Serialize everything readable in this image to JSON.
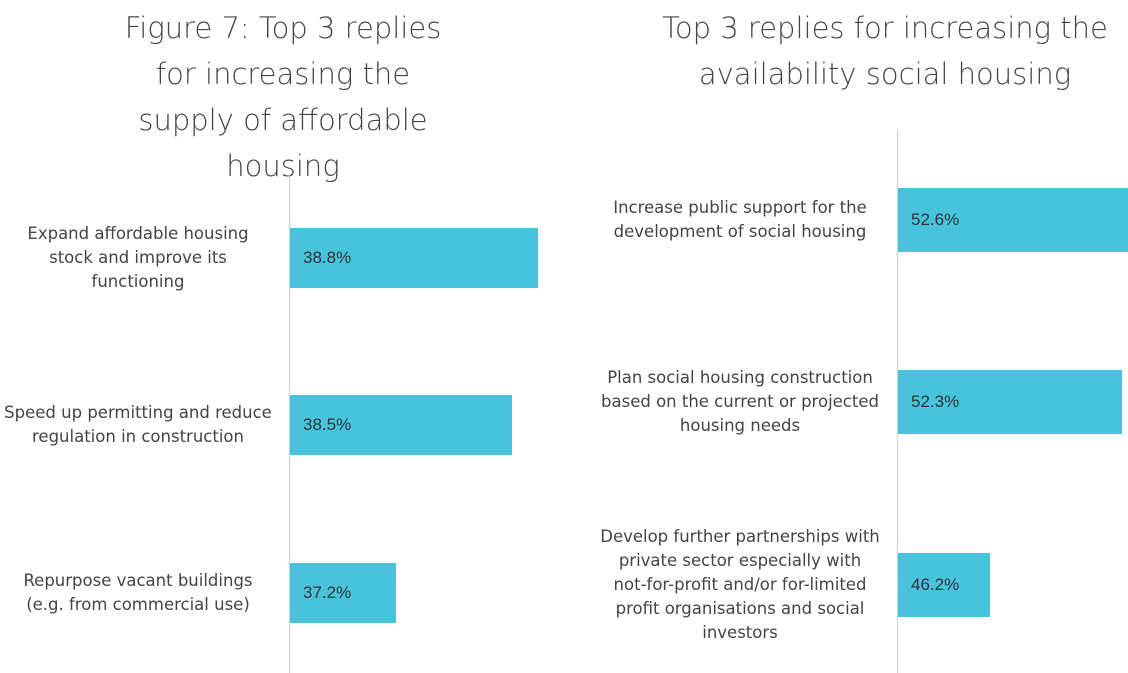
{
  "chart_data": [
    {
      "type": "bar",
      "orientation": "horizontal",
      "title": "Figure 7: Top 3 replies for increasing the supply of affordable housing",
      "categories": [
        "Expand affordable housing stock and improve its functioning",
        "Speed up permitting and reduce regulation in construction",
        "Repurpose vacant buildings (e.g. from commercial use)"
      ],
      "values": [
        38.8,
        38.5,
        37.2
      ],
      "value_labels": [
        "38.8%",
        "38.5%",
        "37.2%"
      ],
      "color": "#48c3dd",
      "xlim": [
        36,
        39
      ]
    },
    {
      "type": "bar",
      "orientation": "horizontal",
      "title": "Top 3 replies for increasing the availability social housing",
      "categories": [
        "Increase public support for the development of social housing",
        "Plan social housing construction based on the current or projected housing needs",
        "Develop further partnerships with private sector especially with not-for-profit and/or for-limited profit organisations and social investors"
      ],
      "values": [
        52.6,
        52.3,
        46.2
      ],
      "value_labels": [
        "52.6%",
        "52.3%",
        "46.2%"
      ],
      "color": "#48c3dd",
      "xlim": [
        42,
        52.6
      ]
    }
  ]
}
